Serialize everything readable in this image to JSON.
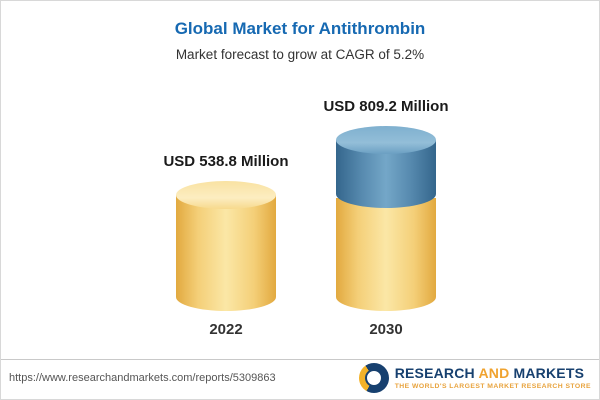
{
  "header": {
    "title": "Global Market for Antithrombin",
    "subtitle": "Market forecast to grow at CAGR of 5.2%"
  },
  "chart_data": {
    "type": "bar",
    "subtype": "3d-cylinder",
    "title": "Global Market for Antithrombin",
    "subtitle": "Market forecast to grow at CAGR of 5.2%",
    "categories": [
      "2022",
      "2030"
    ],
    "values": [
      538.8,
      809.2
    ],
    "unit": "USD Million",
    "value_labels": [
      "USD 538.8 Million",
      "USD 809.2 Million"
    ],
    "cagr_percent": 5.2,
    "legend": false,
    "grid": false,
    "ylim": [
      0,
      900
    ],
    "colors": {
      "title_accent": "#1669b2",
      "base_segment_yellow": "#F5CE6E",
      "growth_segment_blue": "#4E86AC"
    }
  },
  "footer": {
    "url": "https://www.researchandmarkets.com/reports/5309863",
    "logo": {
      "research": "RESEARCH",
      "and": "AND",
      "markets": "MARKETS",
      "tagline": "THE WORLD'S LARGEST MARKET RESEARCH STORE"
    }
  }
}
